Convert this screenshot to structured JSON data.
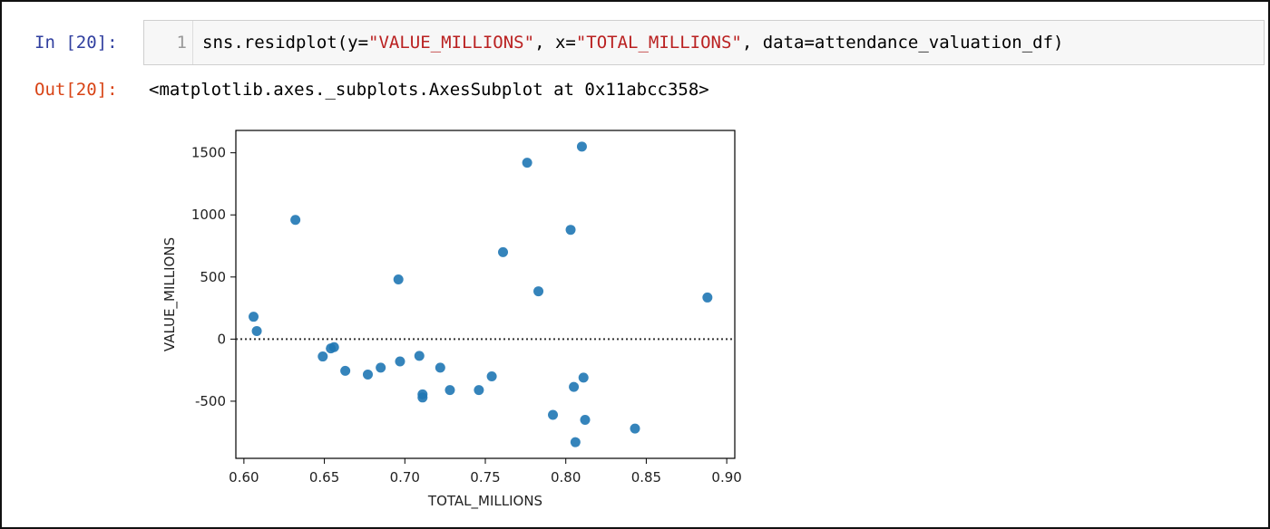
{
  "input_cell": {
    "prompt": "In [20]:",
    "line_number": "1",
    "code": {
      "prefix": "sns.residplot(y=",
      "y_arg": "\"VALUE_MILLIONS\"",
      "mid": ", x=",
      "x_arg": "\"TOTAL_MILLIONS\"",
      "suffix": ", data=attendance_valuation_df)"
    }
  },
  "output_cell": {
    "prompt": "Out[20]:",
    "text": "<matplotlib.axes._subplots.AxesSubplot at 0x11abcc358>"
  },
  "colors": {
    "in_prompt": "#303f9f",
    "out_prompt": "#d84315",
    "string_literal": "#ba2121",
    "point": "#1f77b4"
  },
  "chart_data": {
    "type": "scatter",
    "xlabel": "TOTAL_MILLIONS",
    "ylabel": "VALUE_MILLIONS",
    "xlim": [
      0.595,
      0.905
    ],
    "ylim": [
      -960,
      1680
    ],
    "xticks": [
      0.6,
      0.65,
      0.7,
      0.75,
      0.8,
      0.85,
      0.9
    ],
    "xtick_labels": [
      "0.60",
      "0.65",
      "0.70",
      "0.75",
      "0.80",
      "0.85",
      "0.90"
    ],
    "yticks": [
      -500,
      0,
      500,
      1000,
      1500
    ],
    "ytick_labels": [
      "-500",
      "0",
      "500",
      "1000",
      "1500"
    ],
    "reference_line": 0,
    "points": [
      {
        "x": 0.606,
        "y": 180
      },
      {
        "x": 0.608,
        "y": 65
      },
      {
        "x": 0.632,
        "y": 960
      },
      {
        "x": 0.649,
        "y": -140
      },
      {
        "x": 0.654,
        "y": -75
      },
      {
        "x": 0.656,
        "y": -65
      },
      {
        "x": 0.663,
        "y": -255
      },
      {
        "x": 0.677,
        "y": -285
      },
      {
        "x": 0.685,
        "y": -230
      },
      {
        "x": 0.696,
        "y": 480
      },
      {
        "x": 0.697,
        "y": -180
      },
      {
        "x": 0.709,
        "y": -135
      },
      {
        "x": 0.711,
        "y": -445
      },
      {
        "x": 0.711,
        "y": -470
      },
      {
        "x": 0.722,
        "y": -230
      },
      {
        "x": 0.728,
        "y": -410
      },
      {
        "x": 0.746,
        "y": -410
      },
      {
        "x": 0.754,
        "y": -300
      },
      {
        "x": 0.761,
        "y": 700
      },
      {
        "x": 0.776,
        "y": 1420
      },
      {
        "x": 0.783,
        "y": 385
      },
      {
        "x": 0.792,
        "y": -610
      },
      {
        "x": 0.803,
        "y": 880
      },
      {
        "x": 0.805,
        "y": -385
      },
      {
        "x": 0.806,
        "y": -830
      },
      {
        "x": 0.81,
        "y": 1550
      },
      {
        "x": 0.811,
        "y": -310
      },
      {
        "x": 0.812,
        "y": -650
      },
      {
        "x": 0.843,
        "y": -720
      },
      {
        "x": 0.888,
        "y": 335
      }
    ]
  }
}
